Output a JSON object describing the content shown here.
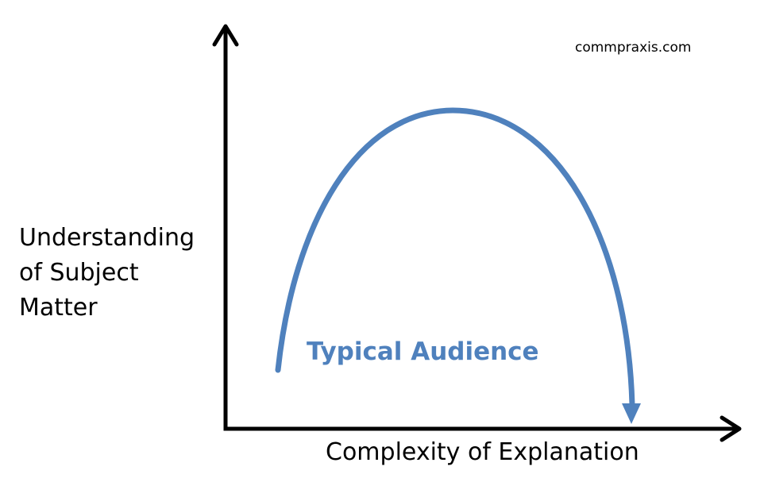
{
  "watermark": "commpraxis.com",
  "y_axis_label_lines": [
    "Understanding",
    "of Subject",
    "Matter"
  ],
  "x_axis_label": "Complexity of Explanation",
  "curve_label": "Typical Audience",
  "colors": {
    "curve": "#4f81bd",
    "axes": "#000000",
    "curve_label": "#4f81bd"
  }
}
